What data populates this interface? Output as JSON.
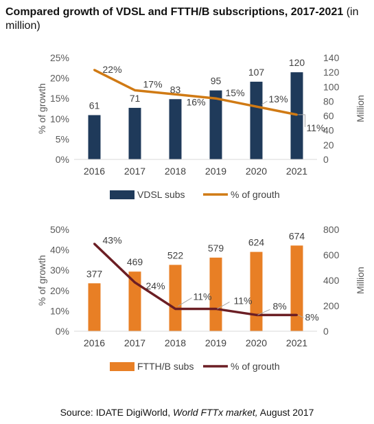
{
  "title": {
    "main": "Compared growth of VDSL and FTTH/B subscriptions, 2017-2021",
    "unit": "(in million)"
  },
  "source": {
    "prefix": "Source: IDATE DigiWorld, ",
    "publication": "World FTTx market,",
    "suffix": " August 2017"
  },
  "chart_data": [
    {
      "type": "bar",
      "categories": [
        "2016",
        "2017",
        "2018",
        "2019",
        "2020",
        "2021"
      ],
      "ylabel": "% of growth",
      "y2label": "Million",
      "ylim": [
        0,
        25
      ],
      "y_ticks": [
        "0%",
        "5%",
        "10%",
        "15%",
        "20%",
        "25%"
      ],
      "y2lim": [
        0,
        140
      ],
      "y2_ticks": [
        "0",
        "20",
        "40",
        "60",
        "80",
        "100",
        "120",
        "140"
      ],
      "grid": false,
      "legend": "bottom",
      "series": [
        {
          "name": "VDSL subs",
          "kind": "bar",
          "axis": "y2",
          "color": "#1f3a5a",
          "values": [
            61,
            71,
            83,
            95,
            107,
            120
          ],
          "labels": [
            "61",
            "71",
            "83",
            "95",
            "107",
            "120"
          ]
        },
        {
          "name": "% of grouth",
          "kind": "line",
          "axis": "y",
          "color": "#d07a14",
          "values": [
            22,
            17,
            16,
            15,
            13,
            11
          ],
          "labels": [
            "22%",
            "17%",
            "16%",
            "15%",
            "13%",
            "11%"
          ]
        }
      ]
    },
    {
      "type": "bar",
      "categories": [
        "2016",
        "2017",
        "2018",
        "2019",
        "2020",
        "2021"
      ],
      "ylabel": "% of growth",
      "y2label": "Million",
      "ylim": [
        0,
        50
      ],
      "y_ticks": [
        "0%",
        "10%",
        "20%",
        "30%",
        "40%",
        "50%"
      ],
      "y2lim": [
        0,
        800
      ],
      "y2_ticks": [
        "0",
        "200",
        "400",
        "600",
        "800"
      ],
      "grid": false,
      "legend": "bottom",
      "series": [
        {
          "name": "FTTH/B subs",
          "kind": "bar",
          "axis": "y2",
          "color": "#e87f25",
          "values": [
            377,
            469,
            522,
            579,
            624,
            674
          ],
          "labels": [
            "377",
            "469",
            "522",
            "579",
            "624",
            "674"
          ]
        },
        {
          "name": "% of grouth",
          "kind": "line",
          "axis": "y",
          "color": "#6b1e24",
          "values": [
            43,
            24,
            11,
            11,
            8,
            8
          ],
          "labels": [
            "43%",
            "24%",
            "11%",
            "11%",
            "8%",
            "8%"
          ]
        }
      ]
    }
  ]
}
